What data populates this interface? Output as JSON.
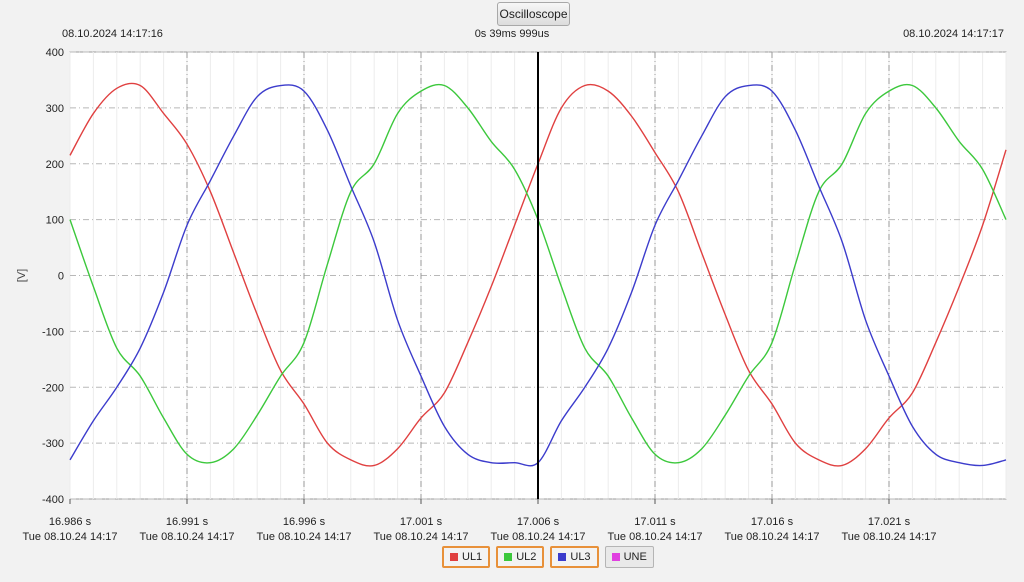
{
  "header": {
    "button_label": "Oscilloscope",
    "left_timestamp": "08.10.2024 14:17:16",
    "right_timestamp": "08.10.2024 14:17:17",
    "cursor_time": "0s 39ms 999us"
  },
  "chart_data": {
    "type": "line",
    "ylabel": "[V]",
    "xlabel": "",
    "ylim": [
      -400,
      400
    ],
    "yticks": [
      "400",
      "300",
      "200",
      "100",
      "0",
      "-100",
      "-200",
      "-300",
      "-400"
    ],
    "xlim": [
      16.986,
      17.026
    ],
    "xticks": [
      {
        "x": 16.986,
        "line1": "16.986 s",
        "line2": "Tue 08.10.24 14:17"
      },
      {
        "x": 16.991,
        "line1": "16.991 s",
        "line2": "Tue 08.10.24 14:17"
      },
      {
        "x": 16.996,
        "line1": "16.996 s",
        "line2": "Tue 08.10.24 14:17"
      },
      {
        "x": 17.001,
        "line1": "17.001 s",
        "line2": "Tue 08.10.24 14:17"
      },
      {
        "x": 17.006,
        "line1": "17.006 s",
        "line2": "Tue 08.10.24 14:17"
      },
      {
        "x": 17.011,
        "line1": "17.011 s",
        "line2": "Tue 08.10.24 14:17"
      },
      {
        "x": 17.016,
        "line1": "17.016 s",
        "line2": "Tue 08.10.24 14:17"
      },
      {
        "x": 17.021,
        "line1": "17.021 s",
        "line2": "Tue 08.10.24 14:17"
      }
    ],
    "cursor_x": 17.006,
    "grid": true,
    "legend_position": "bottom-center",
    "series": [
      {
        "name": "UL1",
        "color": "#e04040",
        "active": true,
        "x": [
          16.986,
          16.987,
          16.988,
          16.989,
          16.99,
          16.991,
          16.992,
          16.993,
          16.994,
          16.995,
          16.996,
          16.997,
          16.998,
          16.999,
          17.0,
          17.001,
          17.002,
          17.003,
          17.004,
          17.005,
          17.006,
          17.007,
          17.008,
          17.009,
          17.01,
          17.011,
          17.012,
          17.013,
          17.014,
          17.015,
          17.016,
          17.017,
          17.018,
          17.019,
          17.02,
          17.021,
          17.022,
          17.023,
          17.024,
          17.025,
          17.026
        ],
        "values": [
          215,
          290,
          335,
          340,
          290,
          235,
          150,
          40,
          -70,
          -170,
          -230,
          -300,
          -330,
          -340,
          -310,
          -255,
          -210,
          -120,
          -20,
          90,
          200,
          300,
          340,
          330,
          285,
          220,
          150,
          40,
          -70,
          -170,
          -230,
          -300,
          -330,
          -340,
          -310,
          -255,
          -210,
          -120,
          -20,
          90,
          225
        ]
      },
      {
        "name": "UL2",
        "color": "#3cc83c",
        "active": true,
        "x": [
          16.986,
          16.987,
          16.988,
          16.989,
          16.99,
          16.991,
          16.992,
          16.993,
          16.994,
          16.995,
          16.996,
          16.997,
          16.998,
          16.999,
          17.0,
          17.001,
          17.002,
          17.003,
          17.004,
          17.005,
          17.006,
          17.007,
          17.008,
          17.009,
          17.01,
          17.011,
          17.012,
          17.013,
          17.014,
          17.015,
          17.016,
          17.017,
          17.018,
          17.019,
          17.02,
          17.021,
          17.022,
          17.023,
          17.024,
          17.025,
          17.026
        ],
        "values": [
          100,
          -20,
          -130,
          -180,
          -255,
          -320,
          -335,
          -310,
          -250,
          -180,
          -120,
          20,
          150,
          200,
          290,
          330,
          340,
          300,
          240,
          190,
          100,
          -20,
          -130,
          -180,
          -255,
          -320,
          -335,
          -310,
          -250,
          -180,
          -120,
          20,
          150,
          200,
          290,
          330,
          340,
          300,
          240,
          190,
          100
        ]
      },
      {
        "name": "UL3",
        "color": "#3c3ccc",
        "active": true,
        "x": [
          16.986,
          16.987,
          16.988,
          16.989,
          16.99,
          16.991,
          16.992,
          16.993,
          16.994,
          16.995,
          16.996,
          16.997,
          16.998,
          16.999,
          17.0,
          17.001,
          17.002,
          17.003,
          17.004,
          17.005,
          17.006,
          17.007,
          17.008,
          17.009,
          17.01,
          17.011,
          17.012,
          17.013,
          17.014,
          17.015,
          17.016,
          17.017,
          17.018,
          17.019,
          17.02,
          17.021,
          17.022,
          17.023,
          17.024,
          17.025,
          17.026
        ],
        "values": [
          -330,
          -260,
          -200,
          -130,
          -30,
          90,
          170,
          250,
          320,
          340,
          330,
          260,
          160,
          60,
          -80,
          -180,
          -270,
          -320,
          -335,
          -335,
          -335,
          -260,
          -200,
          -130,
          -30,
          90,
          170,
          250,
          320,
          340,
          330,
          260,
          160,
          60,
          -80,
          -180,
          -270,
          -320,
          -335,
          -340,
          -330
        ]
      },
      {
        "name": "UNE",
        "color": "#e040e0",
        "active": false,
        "x": [],
        "values": []
      }
    ]
  }
}
